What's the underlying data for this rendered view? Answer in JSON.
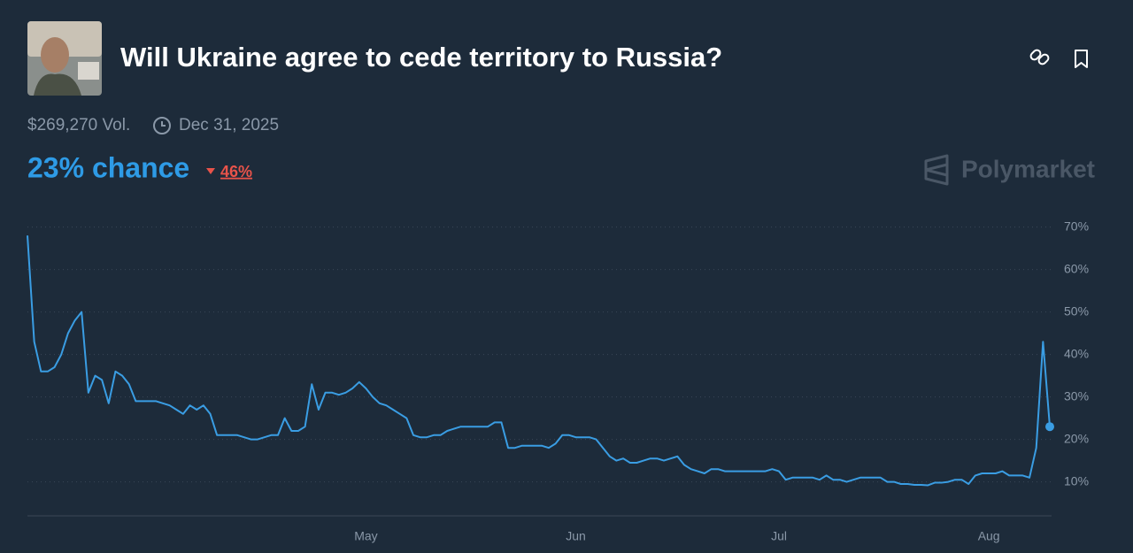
{
  "header": {
    "title": "Will Ukraine agree to cede territory to Russia?",
    "volume": "$269,270 Vol.",
    "end_date": "Dec 31, 2025",
    "chance": "23% chance",
    "change": "46%",
    "brand": "Polymarket"
  },
  "chart_data": {
    "type": "line",
    "color": "#3a9de3",
    "values": [
      68,
      43,
      36,
      36,
      37,
      40,
      45,
      48,
      50,
      31,
      35,
      34,
      28.5,
      36,
      35,
      33,
      29,
      29,
      29,
      29,
      28.5,
      28,
      27,
      26,
      28,
      27,
      28,
      26,
      21,
      21,
      21,
      21,
      20.5,
      20,
      20,
      20.5,
      21,
      21,
      25,
      22,
      22,
      23,
      33,
      27,
      31,
      31,
      30.5,
      31,
      32,
      33.5,
      32,
      30,
      28.5,
      28,
      27,
      26,
      25,
      21,
      20.5,
      20.5,
      21,
      21,
      22,
      22.5,
      23,
      23,
      23,
      23,
      23,
      24,
      24,
      18,
      18,
      18.5,
      18.5,
      18.5,
      18.5,
      18,
      19,
      21,
      21,
      20.5,
      20.5,
      20.5,
      20,
      18,
      16,
      15,
      15.5,
      14.5,
      14.5,
      15,
      15.5,
      15.5,
      15,
      15.5,
      16,
      14,
      13,
      12.5,
      12,
      13,
      13,
      12.5,
      12.5,
      12.5,
      12.5,
      12.5,
      12.5,
      12.5,
      13,
      12.5,
      10.5,
      11,
      11,
      11,
      11,
      10.5,
      11.5,
      10.5,
      10.5,
      10,
      10.5,
      11,
      11,
      11,
      11,
      10,
      10,
      9.5,
      9.5,
      9.3,
      9.3,
      9.2,
      9.8,
      9.8,
      10,
      10.5,
      10.5,
      9.5,
      11.5,
      12,
      12,
      12,
      12.5,
      11.5,
      11.5,
      11.5,
      11,
      18,
      43,
      23
    ],
    "xlim": [
      0,
      151
    ],
    "xticks": [
      {
        "value": 50,
        "label": "May"
      },
      {
        "value": 81,
        "label": "Jun"
      },
      {
        "value": 111,
        "label": "Jul"
      },
      {
        "value": 142,
        "label": "Aug"
      }
    ],
    "ylim": [
      2,
      72
    ],
    "yticks": [
      {
        "value": 10,
        "label": "10%"
      },
      {
        "value": 20,
        "label": "20%"
      },
      {
        "value": 30,
        "label": "30%"
      },
      {
        "value": 40,
        "label": "40%"
      },
      {
        "value": 50,
        "label": "50%"
      },
      {
        "value": 60,
        "label": "60%"
      },
      {
        "value": 70,
        "label": "70%"
      }
    ],
    "grid": true
  }
}
